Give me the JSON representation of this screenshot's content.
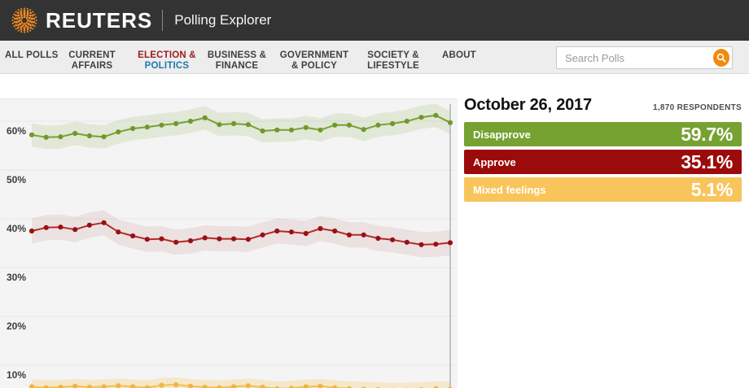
{
  "header": {
    "brand": "REUTERS",
    "product": "Polling Explorer"
  },
  "nav": {
    "items": [
      {
        "lines": [
          "ALL POLLS"
        ]
      },
      {
        "lines": [
          "CURRENT",
          "AFFAIRS"
        ]
      },
      {
        "lines": [
          "ELECTION &",
          "POLITICS"
        ],
        "active": true,
        "line_colors": [
          "#9e1b1e",
          "#2179ae"
        ]
      },
      {
        "lines": [
          "BUSINESS &",
          "FINANCE"
        ]
      },
      {
        "lines": [
          "GOVERNMENT",
          "& POLICY"
        ]
      },
      {
        "lines": [
          "SOCIETY &",
          "LIFESTYLE"
        ]
      },
      {
        "lines": [
          "ABOUT"
        ]
      }
    ],
    "search_placeholder": "Search Polls",
    "search_button_color": "#f28a10"
  },
  "panel": {
    "date": "October 26, 2017",
    "respondents": "1,870 RESPONDENTS",
    "results": [
      {
        "label": "Disapprove",
        "value": "59.7%",
        "color": "#76a232"
      },
      {
        "label": "Approve",
        "value": "35.1%",
        "color": "#9c0b0b"
      },
      {
        "label": "Mixed feelings",
        "value": "5.1%",
        "color": "#f8c55c"
      }
    ]
  },
  "chart_data": {
    "type": "line",
    "xlabel": "",
    "ylabel": "",
    "grid": true,
    "background": "#f4f4f4",
    "ylim": [
      5.2,
      64.3
    ],
    "y_ticks": [
      {
        "label": "60%",
        "value": 60
      },
      {
        "label": "50%",
        "value": 50
      },
      {
        "label": "40%",
        "value": 40
      },
      {
        "label": "30%",
        "value": 30
      },
      {
        "label": "20%",
        "value": 20
      },
      {
        "label": "10%",
        "value": 10
      }
    ],
    "x_points": 30,
    "cursor_index": 29,
    "cursor_color": "#a0a0a0",
    "series": [
      {
        "name": "Disapprove",
        "line_color": "#76a232",
        "dot_color": "#6d9a2b",
        "band_color": "rgba(118,162,50,0.14)",
        "band_delta": 2.4,
        "values": [
          57.2,
          56.7,
          56.8,
          57.5,
          57.0,
          56.8,
          57.8,
          58.5,
          58.8,
          59.2,
          59.5,
          60.0,
          60.7,
          59.3,
          59.5,
          59.3,
          58.0,
          58.2,
          58.2,
          58.7,
          58.2,
          59.2,
          59.2,
          58.3,
          59.2,
          59.5,
          60.0,
          60.8,
          61.2,
          59.7
        ]
      },
      {
        "name": "Approve",
        "line_color": "#b12b27",
        "dot_color": "#9a1113",
        "band_color": "rgba(158,11,11,0.08)",
        "band_delta": 2.6,
        "values": [
          37.5,
          38.2,
          38.3,
          37.8,
          38.7,
          39.2,
          37.3,
          36.5,
          35.8,
          35.9,
          35.2,
          35.5,
          36.1,
          35.9,
          35.9,
          35.8,
          36.7,
          37.5,
          37.3,
          37.0,
          38.0,
          37.5,
          36.7,
          36.7,
          36.0,
          35.7,
          35.2,
          34.7,
          34.8,
          35.1
        ]
      },
      {
        "name": "Mixed feelings",
        "line_color": "#f6bd50",
        "dot_color": "#f3b43e",
        "band_color": "rgba(248,197,92,0.28)",
        "band_delta": 1.5,
        "values": [
          5.6,
          5.4,
          5.5,
          5.7,
          5.5,
          5.6,
          5.8,
          5.6,
          5.4,
          5.9,
          6.0,
          5.7,
          5.5,
          5.4,
          5.6,
          5.8,
          5.5,
          5.2,
          5.3,
          5.6,
          5.7,
          5.4,
          5.2,
          5.1,
          5.0,
          4.9,
          4.9,
          5.0,
          5.2,
          5.1
        ]
      }
    ]
  }
}
